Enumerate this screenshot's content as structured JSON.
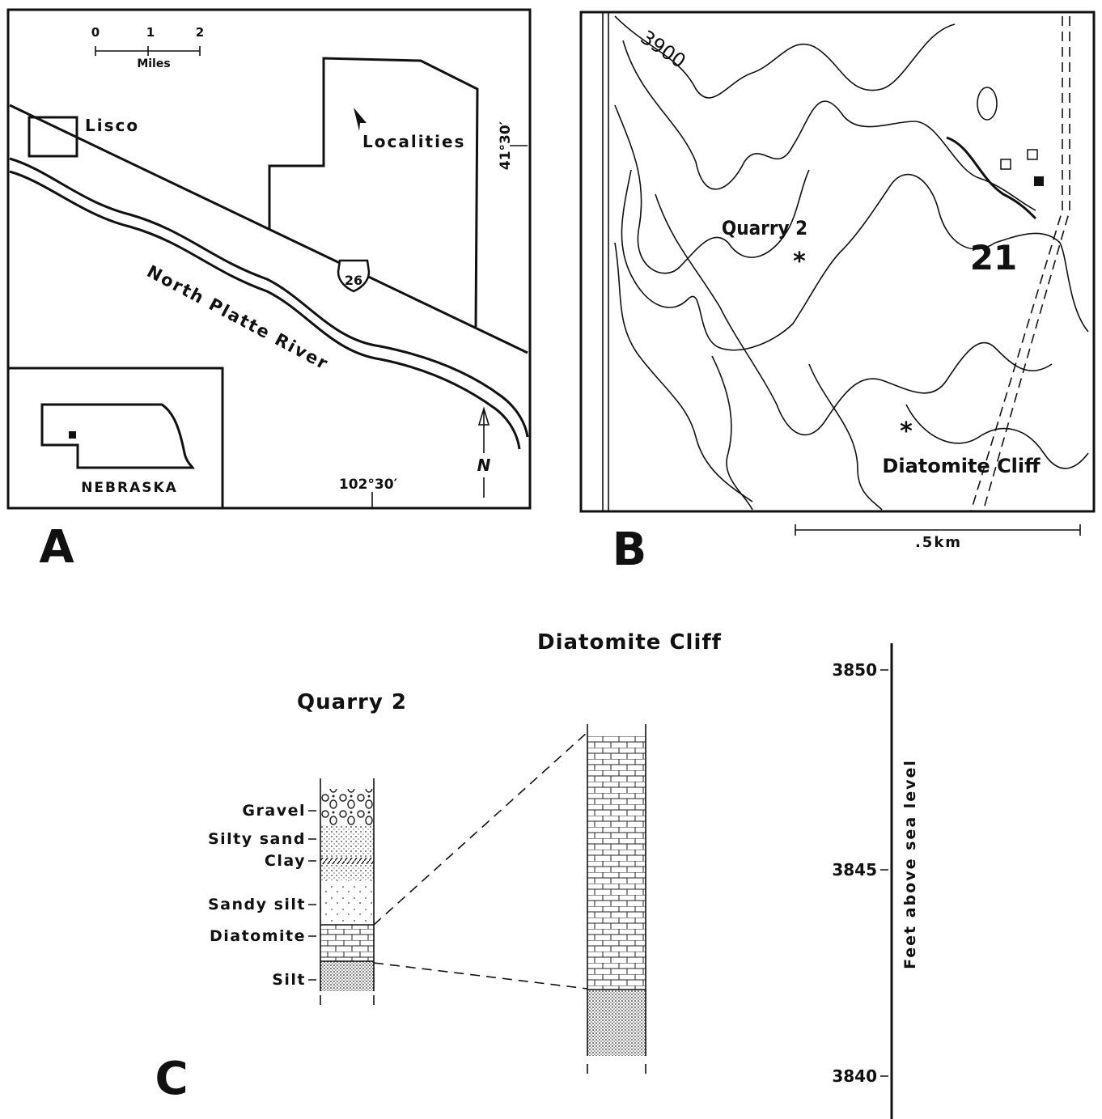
{
  "panel_a": {
    "label": "A",
    "scale_ticks": [
      "0",
      "1",
      "2"
    ],
    "scale_unit": "Miles",
    "town": "Lisco",
    "localities": "Localities",
    "highway": "26",
    "river": "North Platte River",
    "latitude": "41°30′",
    "longitude": "102°30′",
    "north": "N",
    "inset_state": "NEBRASKA"
  },
  "panel_b": {
    "label": "B",
    "contour": "3900",
    "sites": [
      "Quarry 2",
      "Diatomite Cliff"
    ],
    "section": "21",
    "scale": ".5km"
  },
  "panel_c": {
    "label": "C",
    "columns": [
      {
        "title": "Quarry 2",
        "layers": [
          "Gravel",
          "Silty sand",
          "Clay",
          "Sandy silt",
          "Diatomite",
          "Silt"
        ]
      },
      {
        "title": "Diatomite Cliff"
      }
    ],
    "elevation_ticks": [
      "3850",
      "3845",
      "3840"
    ],
    "axis_label": "Feet above sea level"
  }
}
